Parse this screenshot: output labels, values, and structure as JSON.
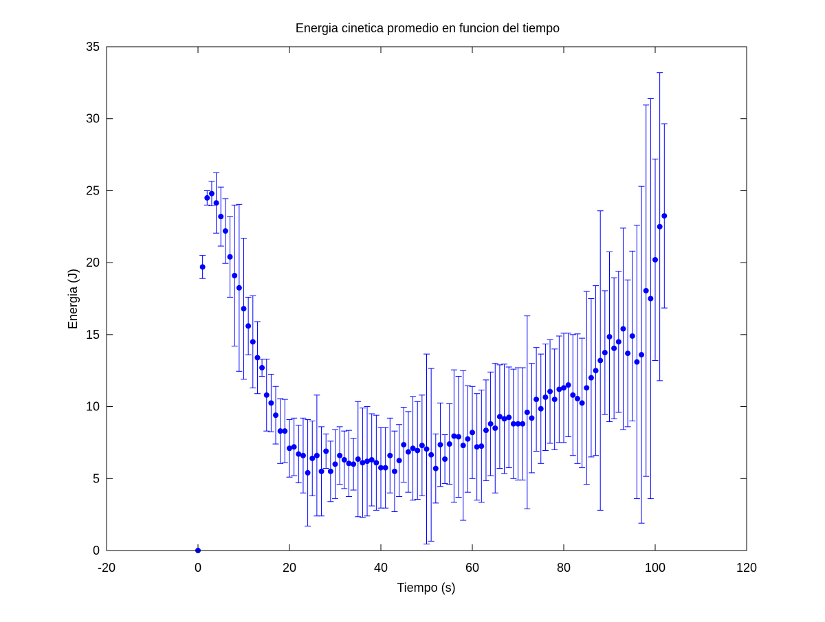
{
  "chart_data": {
    "type": "scatter",
    "title": "Energia cinetica promedio en funcion del tiempo",
    "xlabel": "Tiempo (s)",
    "ylabel": "Energia (J)",
    "xlim": [
      -20,
      120
    ],
    "ylim": [
      0,
      35
    ],
    "xticks": [
      -20,
      0,
      20,
      40,
      60,
      80,
      100,
      120
    ],
    "yticks": [
      0,
      5,
      10,
      15,
      20,
      25,
      30,
      35
    ],
    "xtick_labels": [
      "-20",
      "0",
      "20",
      "40",
      "60",
      "80",
      "100",
      "120"
    ],
    "ytick_labels": [
      "0",
      "5",
      "10",
      "15",
      "20",
      "25",
      "30",
      "35"
    ],
    "grid": false,
    "legend": "none",
    "error_bars": true,
    "series": [
      {
        "color": "#0000ff",
        "marker": "circle",
        "x": [
          0,
          1,
          2,
          3,
          4,
          5,
          6,
          7,
          8,
          9,
          10,
          11,
          12,
          13,
          14,
          15,
          16,
          17,
          18,
          19,
          20,
          21,
          22,
          23,
          24,
          25,
          26,
          27,
          28,
          29,
          30,
          31,
          32,
          33,
          34,
          35,
          36,
          37,
          38,
          39,
          40,
          41,
          42,
          43,
          44,
          45,
          46,
          47,
          48,
          49,
          50,
          51,
          52,
          53,
          54,
          55,
          56,
          57,
          58,
          59,
          60,
          61,
          62,
          63,
          64,
          65,
          66,
          67,
          68,
          69,
          70,
          71,
          72,
          73,
          74,
          75,
          76,
          77,
          78,
          79,
          80,
          81,
          82,
          83,
          84,
          85,
          86,
          87,
          88,
          89,
          90,
          91,
          92,
          93,
          94,
          95,
          96,
          97,
          98,
          99,
          100,
          101,
          102
        ],
        "y": [
          0,
          19.7,
          24.5,
          24.8,
          24.15,
          23.2,
          22.2,
          20.4,
          19.1,
          18.25,
          16.8,
          15.6,
          14.5,
          13.4,
          12.7,
          10.8,
          10.25,
          9.4,
          8.3,
          8.3,
          7.1,
          7.2,
          6.7,
          6.6,
          5.4,
          6.4,
          6.6,
          5.5,
          6.9,
          5.5,
          6.0,
          6.6,
          6.3,
          6.05,
          6.0,
          6.35,
          6.1,
          6.2,
          6.3,
          6.1,
          5.75,
          5.75,
          6.6,
          5.5,
          6.25,
          7.35,
          6.85,
          7.1,
          6.95,
          7.3,
          7.05,
          6.65,
          5.7,
          7.35,
          6.35,
          7.4,
          7.95,
          7.9,
          7.3,
          7.75,
          8.2,
          7.2,
          7.25,
          8.35,
          8.8,
          8.5,
          9.3,
          9.15,
          9.25,
          8.8,
          8.8,
          8.8,
          9.6,
          9.2,
          10.5,
          9.85,
          10.65,
          11.05,
          10.5,
          11.2,
          11.3,
          11.5,
          10.8,
          10.55,
          10.25,
          11.3,
          12.0,
          12.5,
          13.2,
          13.75,
          14.85,
          14.05,
          14.5,
          15.4,
          13.7,
          14.9,
          13.1,
          13.6,
          18.05,
          17.5,
          20.2,
          22.5,
          23.25
        ],
        "error": [
          0,
          0.8,
          0.5,
          0.85,
          2.1,
          2.05,
          2.25,
          2.8,
          4.9,
          5.8,
          4.9,
          2.0,
          3.2,
          2.5,
          0.6,
          2.5,
          2.0,
          2.0,
          2.25,
          2.2,
          2.0,
          2.0,
          2.0,
          2.6,
          3.7,
          2.6,
          4.2,
          3.1,
          1.2,
          2.1,
          2.4,
          2.0,
          2.0,
          2.3,
          1.8,
          4.0,
          3.8,
          3.8,
          3.2,
          3.3,
          2.8,
          2.8,
          2.6,
          2.8,
          2.5,
          2.6,
          2.8,
          3.6,
          3.4,
          3.5,
          6.6,
          6.0,
          2.4,
          2.9,
          1.7,
          2.8,
          4.6,
          4.2,
          5.2,
          3.7,
          3.2,
          3.7,
          3.9,
          3.5,
          3.6,
          4.5,
          3.6,
          3.8,
          3.5,
          3.8,
          3.9,
          3.9,
          6.7,
          3.8,
          3.6,
          3.8,
          3.7,
          3.6,
          3.5,
          3.7,
          3.8,
          3.6,
          4.2,
          4.5,
          4.5,
          6.7,
          5.5,
          5.9,
          10.4,
          4.3,
          5.9,
          4.9,
          4.9,
          7.0,
          5.1,
          5.9,
          9.5,
          11.7,
          12.9,
          13.9,
          7.0,
          10.7,
          6.4
        ]
      }
    ]
  }
}
